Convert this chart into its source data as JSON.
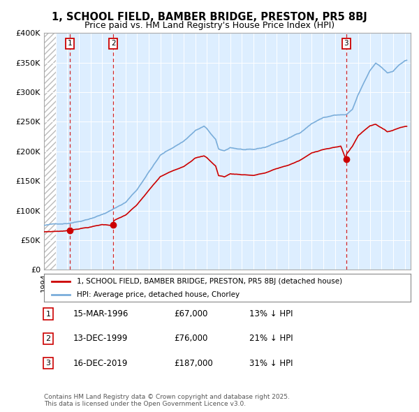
{
  "title_line1": "1, SCHOOL FIELD, BAMBER BRIDGE, PRESTON, PR5 8BJ",
  "title_line2": "Price paid vs. HM Land Registry's House Price Index (HPI)",
  "ylim": [
    0,
    400000
  ],
  "yticks": [
    0,
    50000,
    100000,
    150000,
    200000,
    250000,
    300000,
    350000,
    400000
  ],
  "ytick_labels": [
    "£0",
    "£50K",
    "£100K",
    "£150K",
    "£200K",
    "£250K",
    "£300K",
    "£350K",
    "£400K"
  ],
  "background_color": "#ffffff",
  "plot_bg_color": "#ddeeff",
  "grid_color": "#ffffff",
  "sale_line_color": "#cc0000",
  "hpi_line_color": "#7aadda",
  "dashed_line_color": "#cc0000",
  "sale_points": [
    {
      "year": 1996.21,
      "value": 67000,
      "label": "1"
    },
    {
      "year": 1999.96,
      "value": 76000,
      "label": "2"
    },
    {
      "year": 2019.96,
      "value": 187000,
      "label": "3"
    }
  ],
  "legend_sale_label": "1, SCHOOL FIELD, BAMBER BRIDGE, PRESTON, PR5 8BJ (detached house)",
  "legend_hpi_label": "HPI: Average price, detached house, Chorley",
  "table_rows": [
    {
      "num": "1",
      "date": "15-MAR-1996",
      "price": "£67,000",
      "note": "13% ↓ HPI"
    },
    {
      "num": "2",
      "date": "13-DEC-1999",
      "price": "£76,000",
      "note": "21% ↓ HPI"
    },
    {
      "num": "3",
      "date": "16-DEC-2019",
      "price": "£187,000",
      "note": "31% ↓ HPI"
    }
  ],
  "footnote": "Contains HM Land Registry data © Crown copyright and database right 2025.\nThis data is licensed under the Open Government Licence v3.0.",
  "xmin": 1994.0,
  "xmax": 2025.5
}
